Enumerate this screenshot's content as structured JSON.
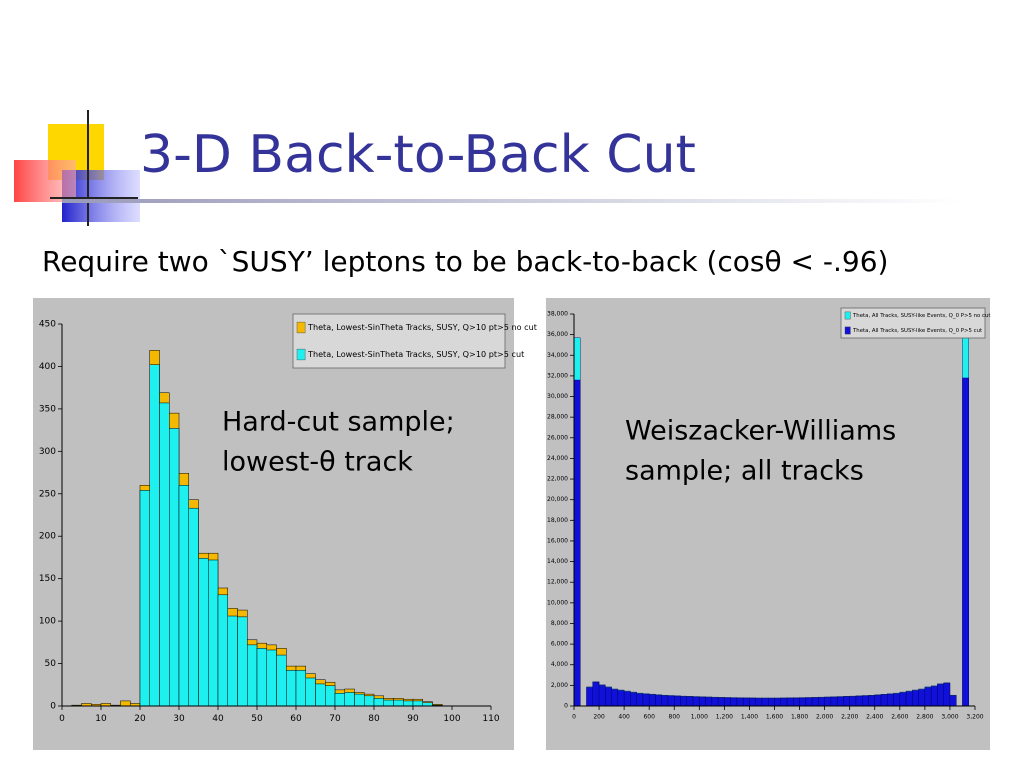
{
  "slide": {
    "title": "3-D Back-to-Back Cut",
    "subtitle": "Require two `SUSY’ leptons to be back-to-back (cosθ < -.96)"
  },
  "chart_data": [
    {
      "type": "histogram",
      "annotation": [
        "Hard-cut sample;",
        "lowest-θ track"
      ],
      "bins": [
        0,
        2.5,
        5,
        7.5,
        10,
        12.5,
        15,
        17.5,
        20,
        22.5,
        25,
        27.5,
        30,
        32.5,
        35,
        37.5,
        40,
        42.5,
        45,
        47.5,
        50,
        52.5,
        55,
        57.5,
        60,
        62.5,
        65,
        67.5,
        70,
        72.5,
        75,
        77.5,
        80,
        82.5,
        85,
        87.5,
        90,
        92.5,
        95,
        97.5,
        100
      ],
      "series": [
        {
          "name": "Theta, Lowest-SinTheta Tracks, SUSY, Q>10 pt>5 no cut",
          "color": "#f5b800",
          "values": [
            0,
            1,
            3,
            2,
            3,
            1,
            6,
            3,
            260,
            419,
            369,
            345,
            274,
            243,
            180,
            180,
            139,
            115,
            113,
            78,
            74,
            72,
            68,
            47,
            47,
            38,
            31,
            28,
            19,
            20,
            16,
            14,
            12,
            9,
            9,
            8,
            8,
            5,
            2,
            0
          ]
        },
        {
          "name": "Theta, Lowest-SinTheta Tracks, SUSY, Q>10 pt>5 cut",
          "color": "#1ef0f0",
          "values": [
            0,
            0,
            0,
            0,
            0,
            0,
            0,
            0,
            254,
            402,
            357,
            327,
            260,
            233,
            174,
            172,
            131,
            106,
            105,
            72,
            68,
            66,
            60,
            42,
            42,
            33,
            26,
            24,
            15,
            16,
            14,
            12,
            9,
            7,
            7,
            6,
            6,
            4,
            1,
            0
          ]
        }
      ],
      "xlim": [
        0,
        110
      ],
      "xticks": [
        0,
        10,
        20,
        30,
        40,
        50,
        60,
        70,
        80,
        90,
        100,
        110
      ],
      "ylim": [
        0,
        450
      ],
      "yticks": [
        0,
        50,
        100,
        150,
        200,
        250,
        300,
        350,
        400,
        450
      ]
    },
    {
      "type": "histogram",
      "annotation": [
        "Weiszacker-Williams",
        "sample; all tracks"
      ],
      "bins": [
        0,
        50,
        100,
        150,
        200,
        250,
        300,
        350,
        400,
        450,
        500,
        550,
        600,
        650,
        700,
        750,
        800,
        850,
        900,
        950,
        1000,
        1050,
        1100,
        1150,
        1200,
        1250,
        1300,
        1350,
        1400,
        1450,
        1500,
        1550,
        1600,
        1650,
        1700,
        1750,
        1800,
        1850,
        1900,
        1950,
        2000,
        2050,
        2100,
        2150,
        2200,
        2250,
        2300,
        2350,
        2400,
        2450,
        2500,
        2550,
        2600,
        2650,
        2700,
        2750,
        2800,
        2850,
        2900,
        2950,
        3000,
        3050,
        3100,
        3150
      ],
      "series": [
        {
          "name": "Theta, All Tracks, SUSY-like Events, Q_0 P>5 no cut",
          "color": "#1ef0f0",
          "values": [
            35700,
            0,
            1850,
            2350,
            2050,
            1850,
            1650,
            1550,
            1450,
            1350,
            1250,
            1200,
            1150,
            1100,
            1050,
            1020,
            990,
            960,
            940,
            920,
            900,
            880,
            860,
            840,
            830,
            820,
            810,
            800,
            790,
            780,
            780,
            780,
            780,
            790,
            800,
            810,
            820,
            830,
            840,
            860,
            880,
            900,
            920,
            940,
            960,
            990,
            1020,
            1040,
            1090,
            1140,
            1190,
            1250,
            1350,
            1450,
            1550,
            1650,
            1850,
            1950,
            2150,
            2250,
            1050,
            0,
            35700
          ]
        },
        {
          "name": "Theta, All Tracks, SUSY-like Events, Q_0 P>5 cut",
          "color": "#1010d8",
          "values": [
            31600,
            0,
            1800,
            2300,
            2000,
            1800,
            1600,
            1500,
            1400,
            1300,
            1200,
            1150,
            1100,
            1050,
            1000,
            980,
            950,
            920,
            900,
            880,
            860,
            840,
            820,
            800,
            790,
            780,
            770,
            760,
            750,
            740,
            740,
            740,
            740,
            750,
            760,
            770,
            780,
            790,
            800,
            820,
            840,
            860,
            880,
            900,
            920,
            950,
            980,
            1000,
            1050,
            1100,
            1150,
            1200,
            1300,
            1400,
            1500,
            1600,
            1800,
            1900,
            2100,
            2200,
            1000,
            0,
            31800
          ]
        }
      ],
      "xlim": [
        0,
        3200
      ],
      "xticks": [
        0,
        200,
        400,
        600,
        800,
        {
          "value": 1000,
          "label": "1,000"
        },
        {
          "value": 1200,
          "label": "1,200"
        },
        {
          "value": 1400,
          "label": "1,400"
        },
        {
          "value": 1600,
          "label": "1,600"
        },
        {
          "value": 1800,
          "label": "1,800"
        },
        {
          "value": 2000,
          "label": "2,000"
        },
        {
          "value": 2200,
          "label": "2,200"
        },
        {
          "value": 2400,
          "label": "2,400"
        },
        {
          "value": 2600,
          "label": "2,600"
        },
        {
          "value": 2800,
          "label": "2,800"
        },
        {
          "value": 3000,
          "label": "3,000"
        },
        {
          "value": 3200,
          "label": "3,200"
        }
      ],
      "ylim": [
        0,
        38000
      ],
      "yticks": [
        0,
        {
          "value": 2000,
          "label": "2,000"
        },
        {
          "value": 4000,
          "label": "4,000"
        },
        {
          "value": 6000,
          "label": "6,000"
        },
        {
          "value": 8000,
          "label": "8,000"
        },
        {
          "value": 10000,
          "label": "10,000"
        },
        {
          "value": 12000,
          "label": "12,000"
        },
        {
          "value": 14000,
          "label": "14,000"
        },
        {
          "value": 16000,
          "label": "16,000"
        },
        {
          "value": 18000,
          "label": "18,000"
        },
        {
          "value": 20000,
          "label": "20,000"
        },
        {
          "value": 22000,
          "label": "22,000"
        },
        {
          "value": 24000,
          "label": "24,000"
        },
        {
          "value": 26000,
          "label": "26,000"
        },
        {
          "value": 28000,
          "label": "28,000"
        },
        {
          "value": 30000,
          "label": "30,000"
        },
        {
          "value": 32000,
          "label": "32,000"
        },
        {
          "value": 34000,
          "label": "34,000"
        },
        {
          "value": 36000,
          "label": "36,000"
        },
        {
          "value": 38000,
          "label": "38,000"
        }
      ]
    }
  ]
}
